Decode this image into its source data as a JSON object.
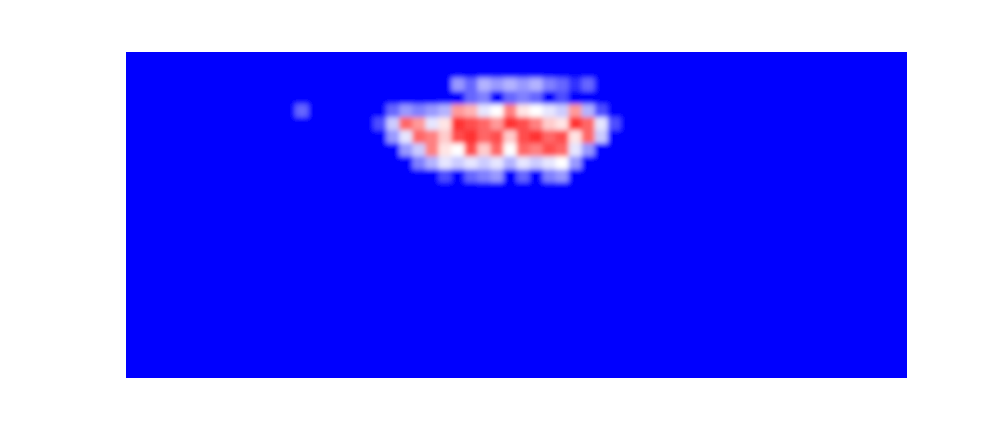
{
  "chart_data": {
    "type": "heatmap",
    "tick_labels": false,
    "clim": [
      0,
      1
    ],
    "cells": [
      [
        0,
        0,
        0,
        0,
        0,
        0,
        0,
        0,
        0,
        0,
        0,
        0,
        0,
        0,
        0,
        0,
        0,
        0,
        0,
        0,
        0,
        0,
        0,
        0,
        0,
        0,
        0,
        0,
        0,
        0,
        0,
        0,
        0,
        0,
        0,
        0,
        0,
        0,
        0,
        0,
        0,
        0,
        0,
        0,
        0,
        0,
        0,
        0,
        0,
        0,
        0,
        0,
        0,
        0,
        0,
        0,
        0,
        0,
        0,
        0
      ],
      [
        0,
        0,
        0,
        0,
        0,
        0,
        0,
        0,
        0,
        0,
        0,
        0,
        0,
        0,
        0,
        0,
        0,
        0,
        0,
        0,
        0,
        0,
        0,
        0,
        0,
        0,
        0,
        0,
        0,
        0,
        0,
        0,
        0,
        0,
        0,
        0,
        0,
        0,
        0,
        0,
        0,
        0,
        0,
        0,
        0,
        0,
        0,
        0,
        0,
        0,
        0,
        0,
        0,
        0,
        0,
        0,
        0,
        0,
        0,
        0
      ],
      [
        0,
        0,
        0,
        0,
        0,
        0,
        0,
        0,
        0,
        0,
        0,
        0,
        0,
        0,
        0,
        0,
        0,
        0,
        0,
        0,
        0,
        0,
        0,
        0,
        0,
        0.3,
        0.2,
        0.35,
        0.3,
        0.35,
        0.3,
        0.35,
        0.25,
        0.2,
        0.1,
        0.2,
        0,
        0,
        0,
        0,
        0,
        0,
        0,
        0,
        0,
        0,
        0,
        0,
        0,
        0,
        0,
        0,
        0,
        0,
        0,
        0,
        0,
        0,
        0,
        0
      ],
      [
        0,
        0,
        0,
        0,
        0,
        0,
        0,
        0,
        0,
        0,
        0,
        0,
        0,
        0,
        0,
        0,
        0,
        0,
        0,
        0,
        0,
        0,
        0,
        0,
        0,
        0,
        0.2,
        0.25,
        0,
        0.2,
        0.25,
        0.2,
        0,
        0.15,
        0,
        0,
        0,
        0,
        0,
        0,
        0,
        0,
        0,
        0,
        0,
        0,
        0,
        0,
        0,
        0,
        0,
        0,
        0,
        0,
        0,
        0,
        0,
        0,
        0,
        0
      ],
      [
        0,
        0,
        0,
        0,
        0,
        0,
        0,
        0,
        0,
        0,
        0,
        0,
        0,
        0.2,
        0,
        0,
        0,
        0,
        0,
        0,
        0.2,
        0.3,
        0.25,
        0.3,
        0.35,
        0.7,
        0.65,
        0.45,
        0.5,
        0.75,
        0.55,
        0.5,
        0.45,
        0.4,
        0.7,
        0.35,
        0.15,
        0,
        0,
        0,
        0,
        0,
        0,
        0,
        0,
        0,
        0,
        0,
        0,
        0,
        0,
        0,
        0,
        0,
        0,
        0,
        0,
        0,
        0,
        0
      ],
      [
        0,
        0,
        0,
        0,
        0,
        0,
        0,
        0,
        0,
        0,
        0,
        0,
        0,
        0,
        0,
        0,
        0,
        0,
        0,
        0.15,
        0.4,
        0.8,
        0.7,
        0.45,
        0.55,
        0.9,
        0.85,
        0.8,
        0.7,
        0.9,
        0.85,
        0.75,
        0.6,
        0.55,
        0.9,
        0.8,
        0.45,
        0.15,
        0,
        0,
        0,
        0,
        0,
        0,
        0,
        0,
        0,
        0,
        0,
        0,
        0,
        0,
        0,
        0,
        0,
        0,
        0,
        0,
        0,
        0
      ],
      [
        0,
        0,
        0,
        0,
        0,
        0,
        0,
        0,
        0,
        0,
        0,
        0,
        0,
        0,
        0,
        0,
        0,
        0,
        0,
        0,
        0.3,
        0.45,
        0.8,
        0.75,
        0.6,
        0.85,
        0.9,
        0.8,
        0.85,
        0.6,
        0.85,
        0.9,
        0.8,
        0.85,
        0.55,
        0.8,
        0.4,
        0,
        0,
        0,
        0,
        0,
        0,
        0,
        0,
        0,
        0,
        0,
        0,
        0,
        0,
        0,
        0,
        0,
        0,
        0,
        0,
        0,
        0,
        0
      ],
      [
        0,
        0,
        0,
        0,
        0,
        0,
        0,
        0,
        0,
        0,
        0,
        0,
        0,
        0,
        0,
        0,
        0,
        0,
        0,
        0,
        0,
        0.3,
        0.4,
        0.75,
        0.55,
        0.5,
        0.85,
        0.6,
        0.8,
        0.5,
        0.8,
        0.75,
        0.85,
        0.8,
        0.45,
        0.3,
        0,
        0,
        0,
        0,
        0,
        0,
        0,
        0,
        0,
        0,
        0,
        0,
        0,
        0,
        0,
        0,
        0,
        0,
        0,
        0,
        0,
        0,
        0,
        0
      ],
      [
        0,
        0,
        0,
        0,
        0,
        0,
        0,
        0,
        0,
        0,
        0,
        0,
        0,
        0,
        0,
        0,
        0,
        0,
        0,
        0,
        0,
        0,
        0.25,
        0.35,
        0.45,
        0.4,
        0.45,
        0.4,
        0.45,
        0.35,
        0.45,
        0.4,
        0.45,
        0.5,
        0.3,
        0,
        0,
        0,
        0,
        0,
        0,
        0,
        0,
        0,
        0,
        0,
        0,
        0,
        0,
        0,
        0,
        0,
        0,
        0,
        0,
        0,
        0,
        0,
        0,
        0
      ],
      [
        0,
        0,
        0,
        0,
        0,
        0,
        0,
        0,
        0,
        0,
        0,
        0,
        0,
        0,
        0,
        0,
        0,
        0,
        0,
        0,
        0,
        0,
        0,
        0,
        0.15,
        0,
        0.2,
        0.25,
        0.3,
        0,
        0.2,
        0,
        0.25,
        0.3,
        0,
        0,
        0,
        0,
        0,
        0,
        0,
        0,
        0,
        0,
        0,
        0,
        0,
        0,
        0,
        0,
        0,
        0,
        0,
        0,
        0,
        0,
        0,
        0,
        0,
        0
      ],
      [
        0,
        0,
        0,
        0,
        0,
        0,
        0,
        0,
        0,
        0,
        0,
        0,
        0,
        0,
        0,
        0,
        0,
        0,
        0,
        0,
        0,
        0,
        0,
        0,
        0,
        0,
        0,
        0,
        0,
        0,
        0,
        0,
        0,
        0,
        0,
        0,
        0,
        0,
        0,
        0,
        0,
        0,
        0,
        0,
        0,
        0,
        0,
        0,
        0,
        0,
        0,
        0,
        0,
        0,
        0,
        0,
        0,
        0,
        0,
        0
      ],
      [
        0,
        0,
        0,
        0,
        0,
        0,
        0,
        0,
        0,
        0,
        0,
        0,
        0,
        0,
        0,
        0,
        0,
        0,
        0,
        0,
        0,
        0,
        0,
        0,
        0,
        0,
        0,
        0,
        0,
        0,
        0,
        0,
        0,
        0,
        0,
        0,
        0,
        0,
        0,
        0,
        0,
        0,
        0,
        0,
        0,
        0,
        0,
        0,
        0,
        0,
        0,
        0,
        0,
        0,
        0,
        0,
        0,
        0,
        0,
        0
      ],
      [
        0,
        0,
        0,
        0,
        0,
        0,
        0,
        0,
        0,
        0,
        0,
        0,
        0,
        0,
        0,
        0,
        0,
        0,
        0,
        0,
        0,
        0,
        0,
        0,
        0,
        0,
        0,
        0,
        0,
        0,
        0,
        0,
        0,
        0,
        0,
        0,
        0,
        0,
        0,
        0,
        0,
        0,
        0,
        0,
        0,
        0,
        0,
        0,
        0,
        0,
        0,
        0,
        0,
        0,
        0,
        0,
        0,
        0,
        0,
        0
      ],
      [
        0,
        0,
        0,
        0,
        0,
        0,
        0,
        0,
        0,
        0,
        0,
        0,
        0,
        0,
        0,
        0,
        0,
        0,
        0,
        0,
        0,
        0,
        0,
        0,
        0,
        0,
        0,
        0,
        0,
        0,
        0,
        0,
        0,
        0,
        0,
        0,
        0,
        0,
        0,
        0,
        0,
        0,
        0,
        0,
        0,
        0,
        0,
        0,
        0,
        0,
        0,
        0,
        0,
        0,
        0,
        0,
        0,
        0,
        0,
        0
      ],
      [
        0,
        0,
        0,
        0,
        0,
        0,
        0,
        0,
        0,
        0,
        0,
        0,
        0,
        0,
        0,
        0,
        0,
        0,
        0,
        0,
        0,
        0,
        0,
        0,
        0,
        0,
        0,
        0,
        0,
        0,
        0,
        0,
        0,
        0,
        0,
        0,
        0,
        0,
        0,
        0,
        0,
        0,
        0,
        0,
        0,
        0,
        0,
        0,
        0,
        0,
        0,
        0,
        0,
        0,
        0,
        0,
        0,
        0,
        0,
        0
      ],
      [
        0,
        0,
        0,
        0,
        0,
        0,
        0,
        0,
        0,
        0,
        0,
        0,
        0,
        0,
        0,
        0,
        0,
        0,
        0,
        0,
        0,
        0,
        0,
        0,
        0,
        0,
        0,
        0,
        0,
        0,
        0,
        0,
        0,
        0,
        0,
        0,
        0,
        0,
        0,
        0,
        0,
        0,
        0,
        0,
        0,
        0,
        0,
        0,
        0,
        0,
        0,
        0,
        0,
        0,
        0,
        0,
        0,
        0,
        0,
        0
      ],
      [
        0,
        0,
        0,
        0,
        0,
        0,
        0,
        0,
        0,
        0,
        0,
        0,
        0,
        0,
        0,
        0,
        0,
        0,
        0,
        0,
        0,
        0,
        0,
        0,
        0,
        0,
        0,
        0,
        0,
        0,
        0,
        0,
        0,
        0,
        0,
        0,
        0,
        0,
        0,
        0,
        0,
        0,
        0,
        0,
        0,
        0,
        0,
        0,
        0,
        0,
        0,
        0,
        0,
        0,
        0,
        0,
        0,
        0,
        0,
        0
      ],
      [
        0,
        0,
        0,
        0,
        0,
        0,
        0,
        0,
        0,
        0,
        0,
        0,
        0,
        0,
        0,
        0,
        0,
        0,
        0,
        0,
        0,
        0,
        0,
        0,
        0,
        0,
        0,
        0,
        0,
        0,
        0,
        0,
        0,
        0,
        0,
        0,
        0,
        0,
        0,
        0,
        0,
        0,
        0,
        0,
        0,
        0,
        0,
        0,
        0,
        0,
        0,
        0,
        0,
        0,
        0,
        0,
        0,
        0,
        0,
        0
      ],
      [
        0,
        0,
        0,
        0,
        0,
        0,
        0,
        0,
        0,
        0,
        0,
        0,
        0,
        0,
        0,
        0,
        0,
        0,
        0,
        0,
        0,
        0,
        0,
        0,
        0,
        0,
        0,
        0,
        0,
        0,
        0,
        0,
        0,
        0,
        0,
        0,
        0,
        0,
        0,
        0,
        0,
        0,
        0,
        0,
        0,
        0,
        0,
        0,
        0,
        0,
        0,
        0,
        0,
        0,
        0,
        0,
        0,
        0,
        0,
        0
      ],
      [
        0,
        0,
        0,
        0,
        0,
        0,
        0,
        0,
        0,
        0,
        0,
        0,
        0,
        0,
        0,
        0,
        0,
        0,
        0,
        0,
        0,
        0,
        0,
        0,
        0,
        0,
        0,
        0,
        0,
        0,
        0,
        0,
        0,
        0,
        0,
        0,
        0,
        0,
        0,
        0,
        0,
        0,
        0,
        0,
        0,
        0,
        0,
        0,
        0,
        0,
        0,
        0,
        0,
        0,
        0,
        0,
        0,
        0,
        0,
        0
      ],
      [
        0,
        0,
        0,
        0,
        0,
        0,
        0,
        0,
        0,
        0,
        0,
        0,
        0,
        0,
        0,
        0,
        0,
        0,
        0,
        0,
        0,
        0,
        0,
        0,
        0,
        0,
        0,
        0,
        0,
        0,
        0,
        0,
        0,
        0,
        0,
        0,
        0,
        0,
        0,
        0,
        0,
        0,
        0,
        0,
        0,
        0,
        0,
        0,
        0,
        0,
        0,
        0,
        0,
        0,
        0,
        0,
        0,
        0,
        0,
        0
      ],
      [
        0,
        0,
        0,
        0,
        0,
        0,
        0,
        0,
        0,
        0,
        0,
        0,
        0,
        0,
        0,
        0,
        0,
        0,
        0,
        0,
        0,
        0,
        0,
        0,
        0,
        0,
        0,
        0,
        0,
        0,
        0,
        0,
        0,
        0,
        0,
        0,
        0,
        0,
        0,
        0,
        0,
        0,
        0,
        0,
        0,
        0,
        0,
        0,
        0,
        0,
        0,
        0,
        0,
        0,
        0,
        0,
        0,
        0,
        0,
        0
      ],
      [
        0,
        0,
        0,
        0,
        0,
        0,
        0,
        0,
        0,
        0,
        0,
        0,
        0,
        0,
        0,
        0,
        0,
        0,
        0,
        0,
        0,
        0,
        0,
        0,
        0,
        0,
        0,
        0,
        0,
        0,
        0,
        0,
        0,
        0,
        0,
        0,
        0,
        0,
        0,
        0,
        0,
        0,
        0,
        0,
        0,
        0,
        0,
        0,
        0,
        0,
        0,
        0,
        0,
        0,
        0,
        0,
        0,
        0,
        0,
        0
      ],
      [
        0,
        0,
        0,
        0,
        0,
        0,
        0,
        0,
        0,
        0,
        0,
        0,
        0,
        0,
        0,
        0,
        0,
        0,
        0,
        0,
        0,
        0,
        0,
        0,
        0,
        0,
        0,
        0,
        0,
        0,
        0,
        0,
        0,
        0,
        0,
        0,
        0,
        0,
        0,
        0,
        0,
        0,
        0,
        0,
        0,
        0,
        0,
        0,
        0,
        0,
        0,
        0,
        0,
        0,
        0,
        0,
        0,
        0,
        0,
        0
      ],
      [
        0,
        0,
        0,
        0,
        0,
        0,
        0,
        0,
        0,
        0,
        0,
        0,
        0,
        0,
        0,
        0,
        0,
        0,
        0,
        0,
        0,
        0,
        0,
        0,
        0,
        0,
        0,
        0,
        0,
        0,
        0,
        0,
        0,
        0,
        0,
        0,
        0,
        0,
        0,
        0,
        0,
        0,
        0,
        0,
        0,
        0,
        0,
        0,
        0,
        0,
        0,
        0,
        0,
        0,
        0,
        0,
        0,
        0,
        0,
        0
      ]
    ]
  }
}
